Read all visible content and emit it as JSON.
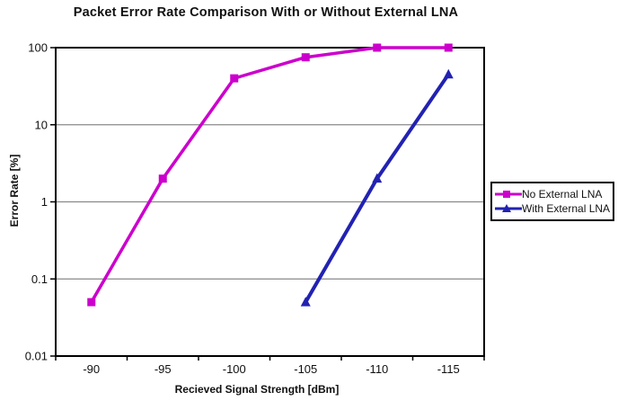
{
  "chart_data": {
    "type": "line",
    "title": "Packet Error Rate Comparison With or Without External LNA",
    "xlabel": "Recieved Signal Strength [dBm]",
    "ylabel": "Error Rate [%]",
    "x": [
      -90,
      -95,
      -100,
      -105,
      -110,
      -115
    ],
    "x_tick_labels": [
      "-90",
      "-95",
      "-100",
      "-105",
      "-110",
      "-115"
    ],
    "y_scale": "log",
    "ylim": [
      0.01,
      100
    ],
    "y_ticks": [
      100,
      10,
      1,
      0.1,
      0.01
    ],
    "y_tick_labels": [
      "100",
      "10",
      "1",
      "0.1",
      "0.01"
    ],
    "gridlines": [
      10,
      1,
      0.1
    ],
    "grid_on": true,
    "legend_position": "right",
    "series": [
      {
        "name": "No External LNA",
        "color": "#cc00cc",
        "marker": "square",
        "line_width": 3.5,
        "values": [
          0.05,
          2,
          40,
          75,
          100,
          100
        ]
      },
      {
        "name": "With External LNA",
        "color": "#2222b2",
        "marker": "triangle",
        "line_width": 4,
        "values": [
          null,
          null,
          null,
          0.05,
          2,
          45
        ]
      }
    ],
    "colors": {
      "axis": "#000000",
      "grid": "#8a8a8a",
      "text": "#111111",
      "plot_background": "#ffffff"
    }
  }
}
